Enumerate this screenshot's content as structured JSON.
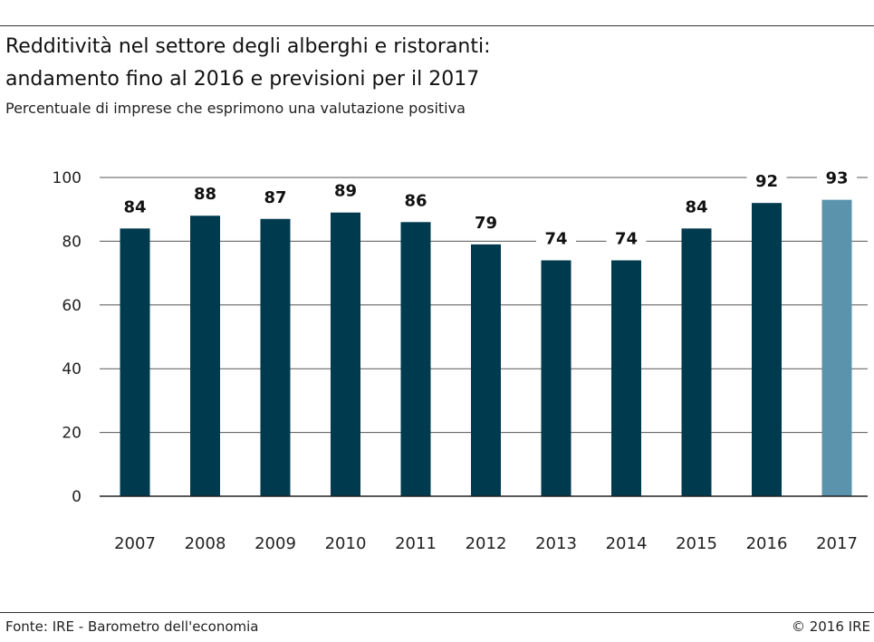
{
  "header": {
    "title_line1": "Redditività nel settore degli alberghi e ristoranti:",
    "title_line2": "andamento fino al 2016 e previsioni per il 2017",
    "subtitle": "Percentuale di imprese che esprimono una valutazione positiva"
  },
  "footer": {
    "source": "Fonte: IRE - Barometro dell'economia",
    "copyright": "© 2016 IRE"
  },
  "colors": {
    "actual": "#003a4f",
    "forecast": "#5a93ab",
    "axis": "#333333"
  },
  "chart_data": {
    "type": "bar",
    "categories": [
      "2007",
      "2008",
      "2009",
      "2010",
      "2011",
      "2012",
      "2013",
      "2014",
      "2015",
      "2016",
      "2017"
    ],
    "values": [
      84,
      88,
      87,
      89,
      86,
      79,
      74,
      74,
      84,
      92,
      93
    ],
    "forecast_categories": [
      "2017"
    ],
    "ylim": [
      0,
      100
    ],
    "yticks": [
      0,
      20,
      40,
      60,
      80,
      100
    ],
    "grid": true,
    "data_labels": true
  }
}
